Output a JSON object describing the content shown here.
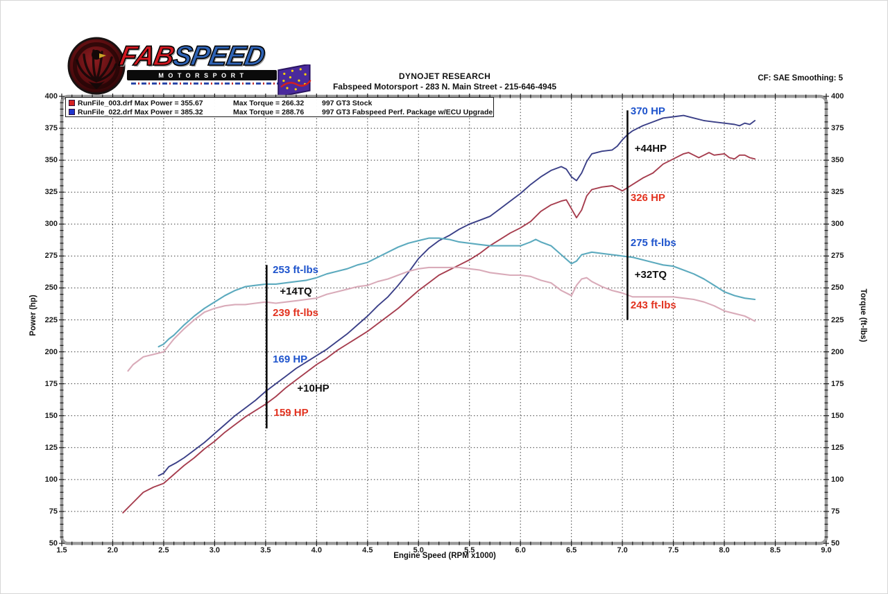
{
  "header": {
    "title": "DYNOJET RESEARCH",
    "subtitle": "Fabspeed Motorsport - 283 N. Main Street - 215-646-4945",
    "correction": "CF: SAE  Smoothing: 5"
  },
  "logo": {
    "brand_fab": "FAB",
    "brand_speed": "SPEED",
    "brand_sub": "MOTORSPORT"
  },
  "legend": {
    "rows": [
      {
        "marker_color": "#d42222",
        "file": "RunFile_003.drf Max Power = 355.67",
        "torque": "Max Torque = 266.32",
        "desc": "997 GT3 Stock"
      },
      {
        "marker_color": "#1f35cc",
        "file": "RunFile_022.drf Max Power = 385.32",
        "torque": "Max Torque = 288.76",
        "desc": "997 GT3 Fabspeed Perf. Package w/ECU Upgrade"
      }
    ]
  },
  "chart_data": {
    "type": "line",
    "xlabel": "Engine Speed (RPM x1000)",
    "ylabel_left": "Power (hp)",
    "ylabel_right": "Torque (ft-lbs)",
    "xlim": [
      1.5,
      9.0
    ],
    "ylim": [
      50,
      400
    ],
    "x_ticks": [
      1.5,
      2.0,
      2.5,
      3.0,
      3.5,
      4.0,
      4.5,
      5.0,
      5.5,
      6.0,
      6.5,
      7.0,
      7.5,
      8.0,
      8.5,
      9.0
    ],
    "y_ticks": [
      50,
      75,
      100,
      125,
      150,
      175,
      200,
      225,
      250,
      275,
      300,
      325,
      350,
      375,
      400
    ],
    "grid": "dotted",
    "legend_position": "top-left",
    "series": [
      {
        "name": "997 GT3 Fabspeed Power",
        "color": "#3a3f87",
        "width": 1.9,
        "points": [
          [
            2.45,
            103
          ],
          [
            2.5,
            105
          ],
          [
            2.55,
            110
          ],
          [
            2.62,
            113
          ],
          [
            2.7,
            117
          ],
          [
            2.8,
            123
          ],
          [
            2.9,
            129
          ],
          [
            3.0,
            136
          ],
          [
            3.1,
            143
          ],
          [
            3.2,
            150
          ],
          [
            3.3,
            156
          ],
          [
            3.4,
            162
          ],
          [
            3.5,
            169
          ],
          [
            3.6,
            175
          ],
          [
            3.7,
            181
          ],
          [
            3.8,
            187
          ],
          [
            3.9,
            192
          ],
          [
            4.0,
            197
          ],
          [
            4.1,
            202
          ],
          [
            4.2,
            208
          ],
          [
            4.3,
            214
          ],
          [
            4.4,
            221
          ],
          [
            4.5,
            228
          ],
          [
            4.6,
            236
          ],
          [
            4.7,
            243
          ],
          [
            4.8,
            252
          ],
          [
            4.9,
            262
          ],
          [
            5.0,
            273
          ],
          [
            5.1,
            281
          ],
          [
            5.2,
            287
          ],
          [
            5.3,
            291
          ],
          [
            5.4,
            296
          ],
          [
            5.5,
            300
          ],
          [
            5.6,
            303
          ],
          [
            5.7,
            306
          ],
          [
            5.8,
            312
          ],
          [
            5.9,
            318
          ],
          [
            6.0,
            324
          ],
          [
            6.1,
            331
          ],
          [
            6.2,
            337
          ],
          [
            6.3,
            342
          ],
          [
            6.4,
            345
          ],
          [
            6.45,
            343
          ],
          [
            6.5,
            337
          ],
          [
            6.55,
            334
          ],
          [
            6.6,
            340
          ],
          [
            6.65,
            349
          ],
          [
            6.7,
            355
          ],
          [
            6.8,
            357
          ],
          [
            6.9,
            358
          ],
          [
            6.95,
            361
          ],
          [
            7.0,
            366
          ],
          [
            7.05,
            370
          ],
          [
            7.1,
            373
          ],
          [
            7.2,
            377
          ],
          [
            7.3,
            380
          ],
          [
            7.4,
            383
          ],
          [
            7.5,
            384
          ],
          [
            7.6,
            385
          ],
          [
            7.7,
            383
          ],
          [
            7.8,
            381
          ],
          [
            7.9,
            380
          ],
          [
            8.0,
            379
          ],
          [
            8.1,
            378
          ],
          [
            8.15,
            377
          ],
          [
            8.2,
            379
          ],
          [
            8.25,
            378
          ],
          [
            8.3,
            381
          ]
        ]
      },
      {
        "name": "997 GT3 Stock Power",
        "color": "#a63d4e",
        "width": 1.9,
        "points": [
          [
            2.1,
            74
          ],
          [
            2.2,
            82
          ],
          [
            2.3,
            90
          ],
          [
            2.4,
            94
          ],
          [
            2.5,
            97
          ],
          [
            2.6,
            104
          ],
          [
            2.7,
            111
          ],
          [
            2.8,
            117
          ],
          [
            2.9,
            124
          ],
          [
            3.0,
            130
          ],
          [
            3.1,
            137
          ],
          [
            3.2,
            143
          ],
          [
            3.3,
            149
          ],
          [
            3.4,
            154
          ],
          [
            3.5,
            159
          ],
          [
            3.6,
            165
          ],
          [
            3.7,
            172
          ],
          [
            3.8,
            178
          ],
          [
            3.9,
            184
          ],
          [
            4.0,
            190
          ],
          [
            4.1,
            195
          ],
          [
            4.2,
            201
          ],
          [
            4.3,
            206
          ],
          [
            4.4,
            211
          ],
          [
            4.5,
            216
          ],
          [
            4.6,
            222
          ],
          [
            4.7,
            228
          ],
          [
            4.8,
            234
          ],
          [
            4.9,
            241
          ],
          [
            5.0,
            248
          ],
          [
            5.1,
            254
          ],
          [
            5.2,
            260
          ],
          [
            5.3,
            264
          ],
          [
            5.4,
            268
          ],
          [
            5.5,
            272
          ],
          [
            5.6,
            277
          ],
          [
            5.7,
            283
          ],
          [
            5.8,
            288
          ],
          [
            5.9,
            293
          ],
          [
            6.0,
            297
          ],
          [
            6.1,
            302
          ],
          [
            6.2,
            310
          ],
          [
            6.3,
            315
          ],
          [
            6.4,
            318
          ],
          [
            6.45,
            319
          ],
          [
            6.5,
            312
          ],
          [
            6.55,
            305
          ],
          [
            6.6,
            311
          ],
          [
            6.65,
            322
          ],
          [
            6.7,
            327
          ],
          [
            6.8,
            329
          ],
          [
            6.9,
            330
          ],
          [
            6.95,
            328
          ],
          [
            7.0,
            326
          ],
          [
            7.1,
            331
          ],
          [
            7.2,
            336
          ],
          [
            7.3,
            340
          ],
          [
            7.4,
            347
          ],
          [
            7.5,
            351
          ],
          [
            7.6,
            355
          ],
          [
            7.65,
            356
          ],
          [
            7.7,
            354
          ],
          [
            7.75,
            352
          ],
          [
            7.8,
            354
          ],
          [
            7.85,
            356
          ],
          [
            7.9,
            354
          ],
          [
            8.0,
            355
          ],
          [
            8.05,
            352
          ],
          [
            8.1,
            351
          ],
          [
            8.15,
            354
          ],
          [
            8.2,
            354
          ],
          [
            8.25,
            352
          ],
          [
            8.3,
            351
          ]
        ]
      },
      {
        "name": "997 GT3 Fabspeed Torque",
        "color": "#5caabe",
        "width": 2.1,
        "points": [
          [
            2.45,
            204
          ],
          [
            2.5,
            206
          ],
          [
            2.55,
            210
          ],
          [
            2.6,
            213
          ],
          [
            2.7,
            221
          ],
          [
            2.8,
            228
          ],
          [
            2.9,
            234
          ],
          [
            3.0,
            239
          ],
          [
            3.1,
            244
          ],
          [
            3.2,
            248
          ],
          [
            3.3,
            251
          ],
          [
            3.4,
            252
          ],
          [
            3.5,
            253
          ],
          [
            3.6,
            253
          ],
          [
            3.7,
            254
          ],
          [
            3.8,
            255
          ],
          [
            3.9,
            256
          ],
          [
            4.0,
            258
          ],
          [
            4.1,
            261
          ],
          [
            4.2,
            263
          ],
          [
            4.3,
            265
          ],
          [
            4.4,
            268
          ],
          [
            4.5,
            270
          ],
          [
            4.6,
            274
          ],
          [
            4.7,
            278
          ],
          [
            4.8,
            282
          ],
          [
            4.9,
            285
          ],
          [
            5.0,
            287
          ],
          [
            5.1,
            289
          ],
          [
            5.2,
            289
          ],
          [
            5.3,
            288
          ],
          [
            5.4,
            286
          ],
          [
            5.5,
            285
          ],
          [
            5.6,
            284
          ],
          [
            5.7,
            283
          ],
          [
            5.8,
            283
          ],
          [
            5.9,
            283
          ],
          [
            6.0,
            283
          ],
          [
            6.1,
            286
          ],
          [
            6.15,
            288
          ],
          [
            6.2,
            286
          ],
          [
            6.3,
            283
          ],
          [
            6.4,
            276
          ],
          [
            6.5,
            269
          ],
          [
            6.55,
            271
          ],
          [
            6.6,
            276
          ],
          [
            6.7,
            278
          ],
          [
            6.8,
            277
          ],
          [
            6.9,
            276
          ],
          [
            7.0,
            275
          ],
          [
            7.1,
            274
          ],
          [
            7.2,
            272
          ],
          [
            7.3,
            270
          ],
          [
            7.4,
            268
          ],
          [
            7.5,
            267
          ],
          [
            7.6,
            264
          ],
          [
            7.7,
            261
          ],
          [
            7.8,
            257
          ],
          [
            7.9,
            252
          ],
          [
            8.0,
            247
          ],
          [
            8.1,
            244
          ],
          [
            8.2,
            242
          ],
          [
            8.3,
            241
          ]
        ]
      },
      {
        "name": "997 GT3 Stock Torque",
        "color": "#d9abb9",
        "width": 2.1,
        "points": [
          [
            2.15,
            185
          ],
          [
            2.2,
            190
          ],
          [
            2.25,
            193
          ],
          [
            2.3,
            196
          ],
          [
            2.4,
            198
          ],
          [
            2.5,
            200
          ],
          [
            2.6,
            210
          ],
          [
            2.7,
            218
          ],
          [
            2.8,
            225
          ],
          [
            2.9,
            231
          ],
          [
            3.0,
            234
          ],
          [
            3.1,
            236
          ],
          [
            3.2,
            237
          ],
          [
            3.3,
            237
          ],
          [
            3.4,
            238
          ],
          [
            3.5,
            239
          ],
          [
            3.6,
            238
          ],
          [
            3.7,
            239
          ],
          [
            3.8,
            240
          ],
          [
            3.9,
            241
          ],
          [
            4.0,
            242
          ],
          [
            4.1,
            245
          ],
          [
            4.2,
            247
          ],
          [
            4.3,
            249
          ],
          [
            4.4,
            251
          ],
          [
            4.5,
            252
          ],
          [
            4.6,
            255
          ],
          [
            4.7,
            257
          ],
          [
            4.8,
            260
          ],
          [
            4.9,
            263
          ],
          [
            5.0,
            265
          ],
          [
            5.1,
            266
          ],
          [
            5.2,
            266
          ],
          [
            5.3,
            266
          ],
          [
            5.4,
            266
          ],
          [
            5.5,
            265
          ],
          [
            5.6,
            264
          ],
          [
            5.7,
            262
          ],
          [
            5.8,
            261
          ],
          [
            5.9,
            260
          ],
          [
            6.0,
            260
          ],
          [
            6.1,
            259
          ],
          [
            6.2,
            256
          ],
          [
            6.3,
            254
          ],
          [
            6.4,
            248
          ],
          [
            6.5,
            244
          ],
          [
            6.55,
            252
          ],
          [
            6.6,
            257
          ],
          [
            6.65,
            258
          ],
          [
            6.7,
            255
          ],
          [
            6.8,
            251
          ],
          [
            6.9,
            248
          ],
          [
            7.0,
            246
          ],
          [
            7.1,
            243
          ],
          [
            7.2,
            243
          ],
          [
            7.3,
            243
          ],
          [
            7.4,
            243
          ],
          [
            7.5,
            243
          ],
          [
            7.6,
            242
          ],
          [
            7.7,
            241
          ],
          [
            7.8,
            239
          ],
          [
            7.9,
            236
          ],
          [
            8.0,
            232
          ],
          [
            8.1,
            230
          ],
          [
            8.15,
            229
          ],
          [
            8.2,
            228
          ],
          [
            8.3,
            224
          ]
        ]
      }
    ],
    "marker_lines": [
      {
        "x": 3.51,
        "y_from": 140,
        "y_to": 268
      },
      {
        "x": 7.05,
        "y_from": 225,
        "y_to": 389
      }
    ],
    "annotations": [
      {
        "text": "370 HP",
        "x": 7.08,
        "y": 388,
        "color": "#1d53cc"
      },
      {
        "text": "+44HP",
        "x": 7.12,
        "y": 359,
        "color": "#101010"
      },
      {
        "text": "326 HP",
        "x": 7.08,
        "y": 320,
        "color": "#e2321f"
      },
      {
        "text": "275 ft-lbs",
        "x": 7.08,
        "y": 285,
        "color": "#1d53cc"
      },
      {
        "text": "+32TQ",
        "x": 7.12,
        "y": 260,
        "color": "#101010"
      },
      {
        "text": "243 ft-lbs",
        "x": 7.08,
        "y": 236,
        "color": "#e2321f"
      },
      {
        "text": "253 ft-lbs",
        "x": 3.57,
        "y": 264,
        "color": "#1d53cc"
      },
      {
        "text": "+14TQ",
        "x": 3.64,
        "y": 247,
        "color": "#101010"
      },
      {
        "text": "239 ft-lbs",
        "x": 3.57,
        "y": 230,
        "color": "#e2321f"
      },
      {
        "text": "169 HP",
        "x": 3.57,
        "y": 194,
        "color": "#1d53cc"
      },
      {
        "text": "+10HP",
        "x": 3.81,
        "y": 171,
        "color": "#101010"
      },
      {
        "text": "159 HP",
        "x": 3.58,
        "y": 152,
        "color": "#e2321f"
      }
    ]
  }
}
